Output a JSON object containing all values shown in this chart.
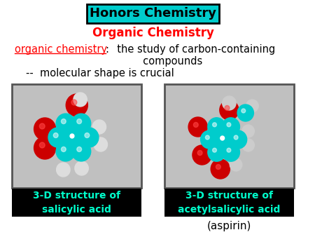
{
  "title": "Honors Chemistry",
  "title_bg": "#00CCCC",
  "title_color": "black",
  "subtitle": "Organic Chemistry",
  "subtitle_color": "#FF0000",
  "line1_underline": "organic chemistry",
  "line1_colon": ":",
  "line1_rest": "  the study of carbon-containing\n          compounds",
  "line2": "--  molecular shape is crucial",
  "caption1": "3-D structure of\nsalicylic acid",
  "caption2": "3-D structure of\nacetylsalicylic acid",
  "caption3": "(aspirin)",
  "caption_color": "#00FFCC",
  "caption_bg": "#000000",
  "box_bg": "#C0C0C0",
  "box_border": "#555555",
  "background_color": "#FFFFFF"
}
